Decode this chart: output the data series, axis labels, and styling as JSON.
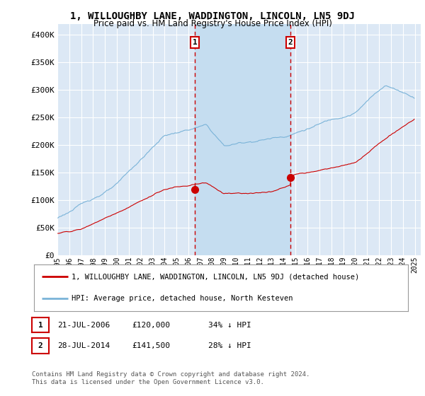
{
  "title": "1, WILLOUGHBY LANE, WADDINGTON, LINCOLN, LN5 9DJ",
  "subtitle": "Price paid vs. HM Land Registry's House Price Index (HPI)",
  "title_fontsize": 10,
  "subtitle_fontsize": 8.5,
  "background_color": "#ffffff",
  "plot_bg_color": "#dce8f5",
  "grid_color": "#ffffff",
  "shade_color": "#c5ddf0",
  "hpi_color": "#7ab3d8",
  "price_color": "#cc0000",
  "xmin": 1995.0,
  "xmax": 2025.5,
  "ymin": 0,
  "ymax": 420000,
  "yticks": [
    0,
    50000,
    100000,
    150000,
    200000,
    250000,
    300000,
    350000,
    400000
  ],
  "ytick_labels": [
    "£0",
    "£50K",
    "£100K",
    "£150K",
    "£200K",
    "£250K",
    "£300K",
    "£350K",
    "£400K"
  ],
  "sale1_x": 2006.55,
  "sale1_y": 120000,
  "sale1_label": "1",
  "sale1_date": "21-JUL-2006",
  "sale1_price": "£120,000",
  "sale1_hpi": "34% ↓ HPI",
  "sale2_x": 2014.56,
  "sale2_y": 141500,
  "sale2_label": "2",
  "sale2_date": "28-JUL-2014",
  "sale2_price": "£141,500",
  "sale2_hpi": "28% ↓ HPI",
  "legend_house": "1, WILLOUGHBY LANE, WADDINGTON, LINCOLN, LN5 9DJ (detached house)",
  "legend_hpi": "HPI: Average price, detached house, North Kesteven",
  "footer": "Contains HM Land Registry data © Crown copyright and database right 2024.\nThis data is licensed under the Open Government Licence v3.0."
}
